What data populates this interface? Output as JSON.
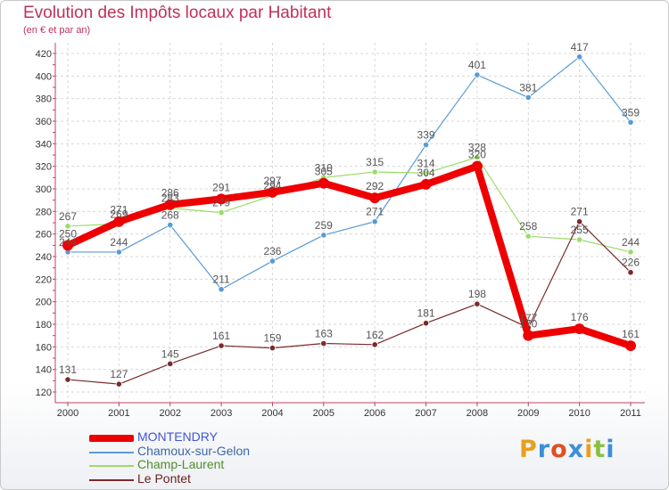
{
  "header": {
    "title": "Evolution des Impôts locaux par Habitant",
    "subtitle": "(en € et par an)"
  },
  "brand": {
    "letters": [
      "P",
      "r",
      "o",
      "x",
      "i",
      "t",
      "i"
    ],
    "colors": [
      "#e8a020",
      "#3a8fd8",
      "#e05020",
      "#3a8fd8",
      "#e8a020",
      "#8ac040",
      "#3a8fd8"
    ]
  },
  "chart_data": {
    "type": "line",
    "title": "Evolution des Impôts locaux par Habitant",
    "subtitle": "(en € et par an)",
    "xlabel": "",
    "ylabel": "",
    "x": [
      "2000",
      "2001",
      "2002",
      "2003",
      "2004",
      "2005",
      "2006",
      "2007",
      "2008",
      "2009",
      "2010",
      "2011"
    ],
    "ylim": [
      120,
      420
    ],
    "yticks": [
      120,
      140,
      160,
      180,
      200,
      220,
      240,
      260,
      280,
      300,
      320,
      340,
      360,
      380,
      400,
      420
    ],
    "grid": true,
    "legend_position": "bottom-left",
    "series": [
      {
        "name": "MONTENDRY",
        "color": "#ee0000",
        "label_color": "#3f56d6",
        "emphasis": true,
        "values": [
          250,
          271,
          286,
          291,
          297,
          305,
          292,
          304,
          320,
          170,
          176,
          161
        ]
      },
      {
        "name": "Chamoux-sur-Gelon",
        "color": "#5b9bd5",
        "label_color": "#3c68a8",
        "emphasis": false,
        "values": [
          244,
          244,
          268,
          211,
          236,
          259,
          271,
          339,
          401,
          381,
          417,
          359
        ]
      },
      {
        "name": "Champ-Laurent",
        "color": "#99dd66",
        "label_color": "#4f8f2a",
        "emphasis": false,
        "values": [
          267,
          269,
          283,
          279,
          294,
          310,
          315,
          314,
          328,
          258,
          255,
          244
        ]
      },
      {
        "name": "Le Pontet",
        "color": "#7a2a2a",
        "label_color": "#6a1f1f",
        "emphasis": false,
        "values": [
          131,
          127,
          145,
          161,
          159,
          163,
          162,
          181,
          198,
          177,
          271,
          226
        ]
      }
    ]
  }
}
